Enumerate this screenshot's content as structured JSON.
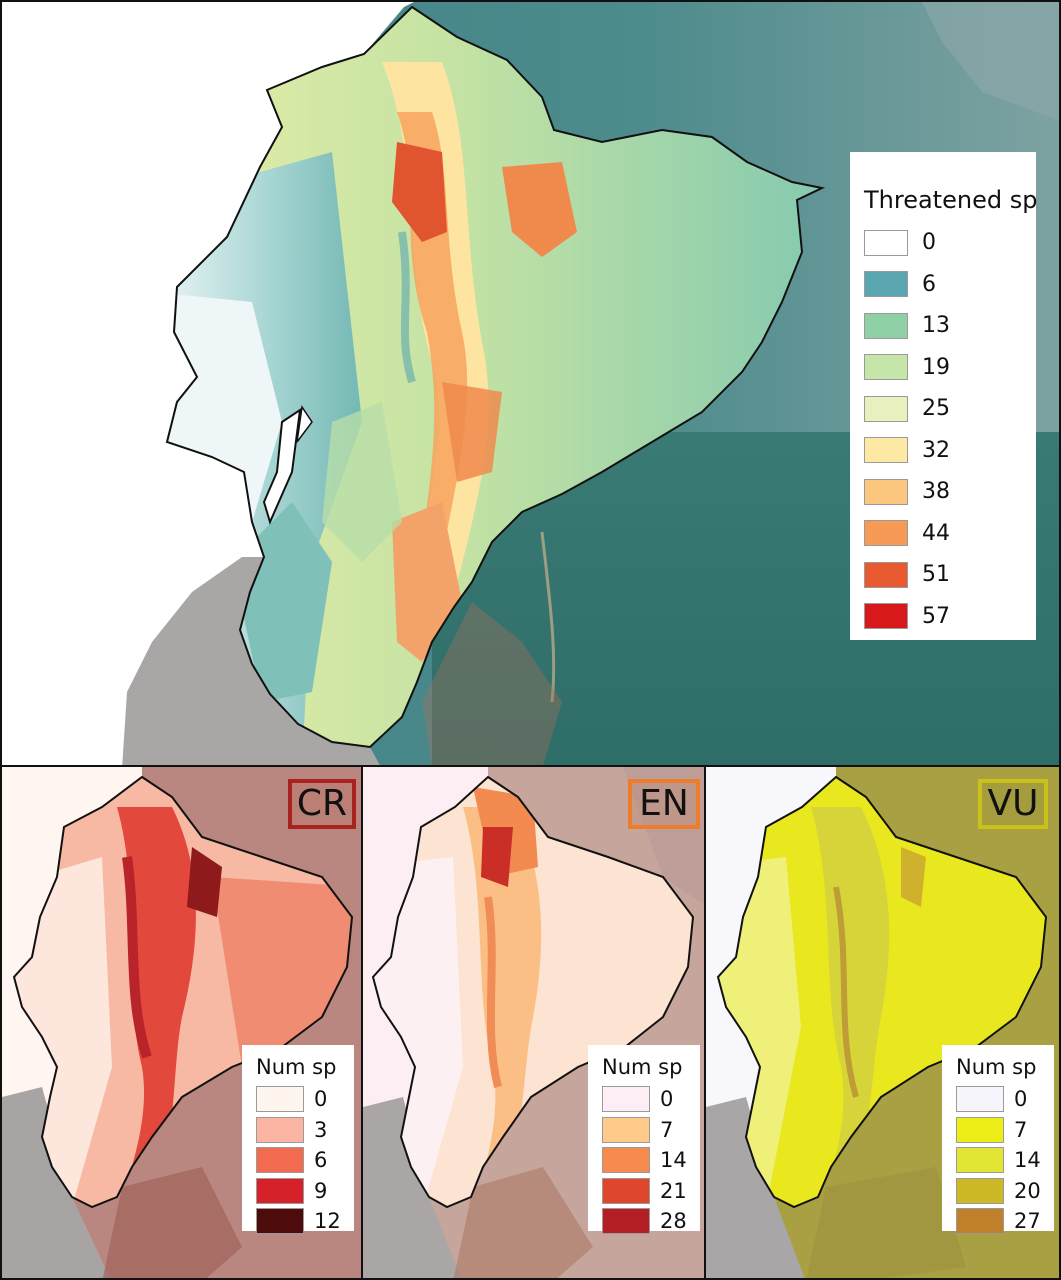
{
  "main_map": {
    "legend_title": "Threatened sp",
    "legend": [
      {
        "label": "0",
        "color": "#ffffff"
      },
      {
        "label": "6",
        "color": "#5aa6b0"
      },
      {
        "label": "13",
        "color": "#8fd0a6"
      },
      {
        "label": "19",
        "color": "#c5e5a9"
      },
      {
        "label": "25",
        "color": "#e8f0bd"
      },
      {
        "label": "32",
        "color": "#fde9a3"
      },
      {
        "label": "38",
        "color": "#fbc67d"
      },
      {
        "label": "44",
        "color": "#f79a55"
      },
      {
        "label": "51",
        "color": "#ea5a31"
      },
      {
        "label": "57",
        "color": "#d7191c"
      }
    ]
  },
  "panels": [
    {
      "id": "cr",
      "badge": "CR",
      "legend_title": "Num sp",
      "legend": [
        {
          "label": "0",
          "color": "#fff5ef"
        },
        {
          "label": "3",
          "color": "#fbb4a1"
        },
        {
          "label": "6",
          "color": "#f26a4f"
        },
        {
          "label": "9",
          "color": "#d5212a"
        },
        {
          "label": "12",
          "color": "#4d0b0c"
        }
      ]
    },
    {
      "id": "en",
      "badge": "EN",
      "legend_title": "Num sp",
      "legend": [
        {
          "label": "0",
          "color": "#fdeef5"
        },
        {
          "label": "7",
          "color": "#fdca8a"
        },
        {
          "label": "14",
          "color": "#f78b4f"
        },
        {
          "label": "21",
          "color": "#e0462c"
        },
        {
          "label": "28",
          "color": "#b31f24"
        }
      ]
    },
    {
      "id": "vu",
      "badge": "VU",
      "legend_title": "Num sp",
      "legend": [
        {
          "label": "0",
          "color": "#f7f5fc"
        },
        {
          "label": "7",
          "color": "#eded17"
        },
        {
          "label": "14",
          "color": "#e2e534"
        },
        {
          "label": "20",
          "color": "#cdb925"
        },
        {
          "label": "27",
          "color": "#c07f2a"
        }
      ]
    }
  ]
}
